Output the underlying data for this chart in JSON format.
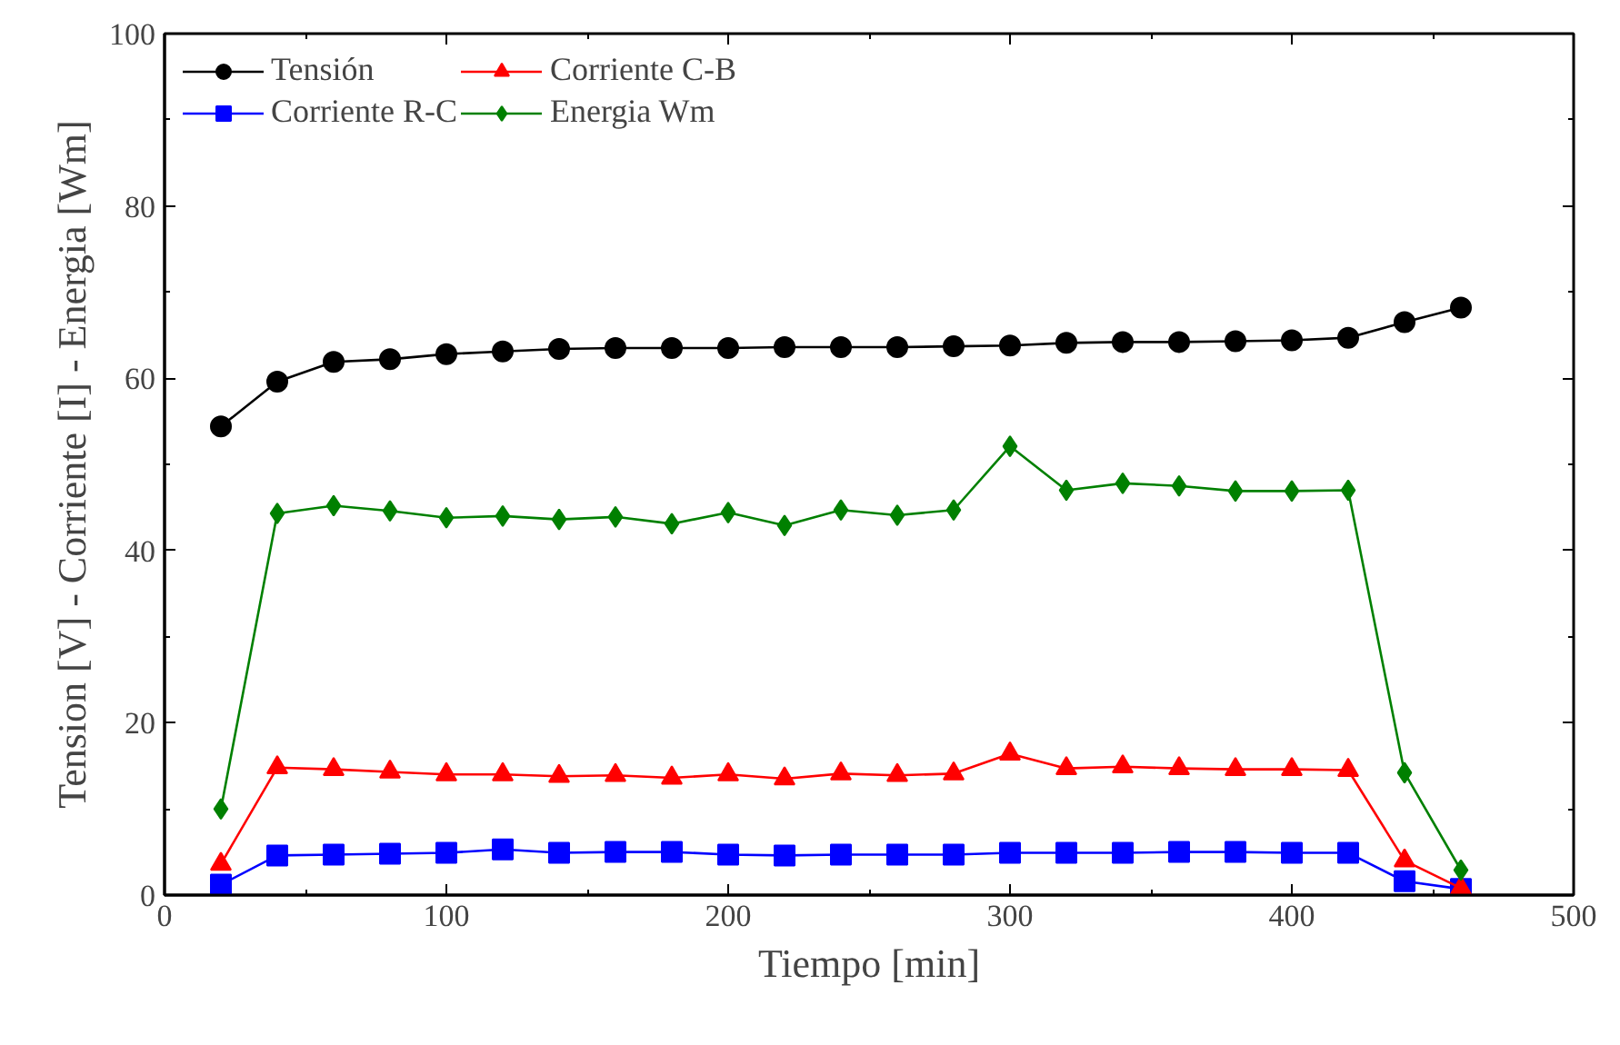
{
  "chart_data": {
    "type": "line",
    "xlabel": "Tiempo [min]",
    "ylabel": "Tension [V] - Corriente [I] - Energia [Wm]",
    "x": [
      20,
      40,
      60,
      80,
      100,
      120,
      140,
      160,
      180,
      200,
      220,
      240,
      260,
      280,
      300,
      320,
      340,
      360,
      380,
      400,
      420,
      440,
      460
    ],
    "series": [
      {
        "name": "Tensión",
        "color": "#000000",
        "marker": "circle",
        "values": [
          54.4,
          59.6,
          61.9,
          62.2,
          62.8,
          63.1,
          63.4,
          63.5,
          63.5,
          63.5,
          63.6,
          63.6,
          63.6,
          63.7,
          63.8,
          64.1,
          64.2,
          64.2,
          64.3,
          64.4,
          64.7,
          66.5,
          68.2
        ]
      },
      {
        "name": "Corriente R-C",
        "color": "#0000ff",
        "marker": "square",
        "values": [
          1.2,
          4.6,
          4.7,
          4.8,
          4.9,
          5.3,
          4.9,
          5.0,
          5.0,
          4.7,
          4.6,
          4.7,
          4.7,
          4.7,
          4.9,
          4.9,
          4.9,
          5.0,
          5.0,
          4.9,
          4.9,
          1.6,
          0.7
        ]
      },
      {
        "name": "Corriente C-B",
        "color": "#ff0000",
        "marker": "triangle",
        "values": [
          3.6,
          14.8,
          14.6,
          14.3,
          14.0,
          14.0,
          13.8,
          13.9,
          13.6,
          14.0,
          13.5,
          14.1,
          13.9,
          14.1,
          16.4,
          14.7,
          14.9,
          14.7,
          14.6,
          14.6,
          14.5,
          4.0,
          0.8
        ]
      },
      {
        "name": "Energia Wm",
        "color": "#008000",
        "marker": "diamond",
        "values": [
          10.0,
          44.3,
          45.2,
          44.6,
          43.8,
          44.0,
          43.6,
          43.9,
          43.1,
          44.4,
          42.9,
          44.7,
          44.1,
          44.7,
          52.1,
          47.0,
          47.8,
          47.5,
          46.9,
          46.9,
          47.0,
          14.2,
          2.9
        ]
      }
    ],
    "xlim": [
      0,
      500
    ],
    "xticks": [
      0,
      100,
      200,
      300,
      400,
      500
    ],
    "ylim": [
      0,
      100
    ],
    "yticks": [
      0,
      20,
      40,
      60,
      80,
      100
    ],
    "grid": false,
    "legend": "top left",
    "line_style": "solid"
  }
}
